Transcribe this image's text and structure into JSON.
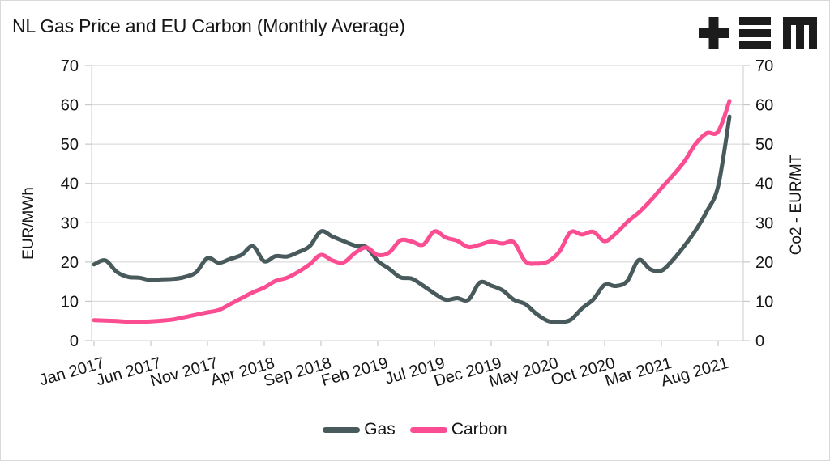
{
  "chart_data": {
    "type": "line",
    "title": "NL Gas Price and EU Carbon (Monthly Average)",
    "y_left_label": "EUR/MWh",
    "y_right_label": "Co2 - EUR/MT",
    "y_ticks": [
      0,
      10,
      20,
      30,
      40,
      50,
      60,
      70
    ],
    "ylim": [
      0,
      70
    ],
    "grid": "horizontal",
    "legend_position": "bottom",
    "x_tick_labels": [
      "Jan 2017",
      "Jun 2017",
      "Nov 2017",
      "Apr 2018",
      "Sep 2018",
      "Feb 2019",
      "Jul 2019",
      "Dec 2019",
      "May 2020",
      "Oct 2020",
      "Mar 2021",
      "Aug 2021"
    ],
    "x_tick_month_indices": [
      0,
      5,
      10,
      15,
      20,
      25,
      30,
      35,
      40,
      45,
      50,
      55
    ],
    "x_months": [
      "Jan 2017",
      "Feb 2017",
      "Mar 2017",
      "Apr 2017",
      "May 2017",
      "Jun 2017",
      "Jul 2017",
      "Aug 2017",
      "Sep 2017",
      "Oct 2017",
      "Nov 2017",
      "Dec 2017",
      "Jan 2018",
      "Feb 2018",
      "Mar 2018",
      "Apr 2018",
      "May 2018",
      "Jun 2018",
      "Jul 2018",
      "Aug 2018",
      "Sep 2018",
      "Oct 2018",
      "Nov 2018",
      "Dec 2018",
      "Jan 2019",
      "Feb 2019",
      "Mar 2019",
      "Apr 2019",
      "May 2019",
      "Jun 2019",
      "Jul 2019",
      "Aug 2019",
      "Sep 2019",
      "Oct 2019",
      "Nov 2019",
      "Dec 2019",
      "Jan 2020",
      "Feb 2020",
      "Mar 2020",
      "Apr 2020",
      "May 2020",
      "Jun 2020",
      "Jul 2020",
      "Aug 2020",
      "Sep 2020",
      "Oct 2020",
      "Nov 2020",
      "Dec 2020",
      "Jan 2021",
      "Feb 2021",
      "Mar 2021",
      "Apr 2021",
      "May 2021",
      "Jun 2021",
      "Jul 2021",
      "Aug 2021",
      "Sep 2021"
    ],
    "series": [
      {
        "name": "Gas",
        "axis": "left",
        "unit": "EUR/MWh",
        "color": "#485a5c",
        "values": [
          19.4,
          20.4,
          17.5,
          16.2,
          16.0,
          15.4,
          15.6,
          15.7,
          16.2,
          17.4,
          21.0,
          19.8,
          20.8,
          21.8,
          24.0,
          20.2,
          21.5,
          21.4,
          22.5,
          24.0,
          27.8,
          26.5,
          25.3,
          24.2,
          23.8,
          20.3,
          18.3,
          16.1,
          15.8,
          14.0,
          12.0,
          10.4,
          10.8,
          10.4,
          14.8,
          14.0,
          12.8,
          10.4,
          9.3,
          6.8,
          5.0,
          4.7,
          5.3,
          8.2,
          10.5,
          14.2,
          13.9,
          15.2,
          20.5,
          18.2,
          17.8,
          20.5,
          24.0,
          28.0,
          32.9,
          39.3,
          57.0
        ]
      },
      {
        "name": "Carbon",
        "axis": "right",
        "unit": "Co2 - EUR/MT",
        "color": "#fb4d91",
        "values": [
          5.2,
          5.1,
          5.0,
          4.8,
          4.7,
          4.9,
          5.1,
          5.4,
          6.0,
          6.6,
          7.2,
          7.8,
          9.3,
          10.8,
          12.3,
          13.5,
          15.2,
          16.0,
          17.5,
          19.4,
          21.8,
          20.4,
          19.9,
          22.3,
          23.7,
          21.8,
          22.4,
          25.5,
          25.2,
          24.4,
          27.8,
          26.2,
          25.4,
          23.8,
          24.4,
          25.2,
          24.7,
          25.0,
          20.2,
          19.6,
          20.1,
          22.6,
          27.6,
          27.0,
          27.7,
          25.3,
          27.3,
          30.2,
          32.6,
          35.5,
          38.8,
          42.0,
          45.5,
          50.0,
          52.8,
          53.2,
          61.0
        ]
      }
    ],
    "style": {
      "grid_color": "#dcdcdc",
      "axis_color": "#d4d4d4",
      "tick_color": "#c8c8c8",
      "text_color": "#161616",
      "line_width": 5
    }
  }
}
